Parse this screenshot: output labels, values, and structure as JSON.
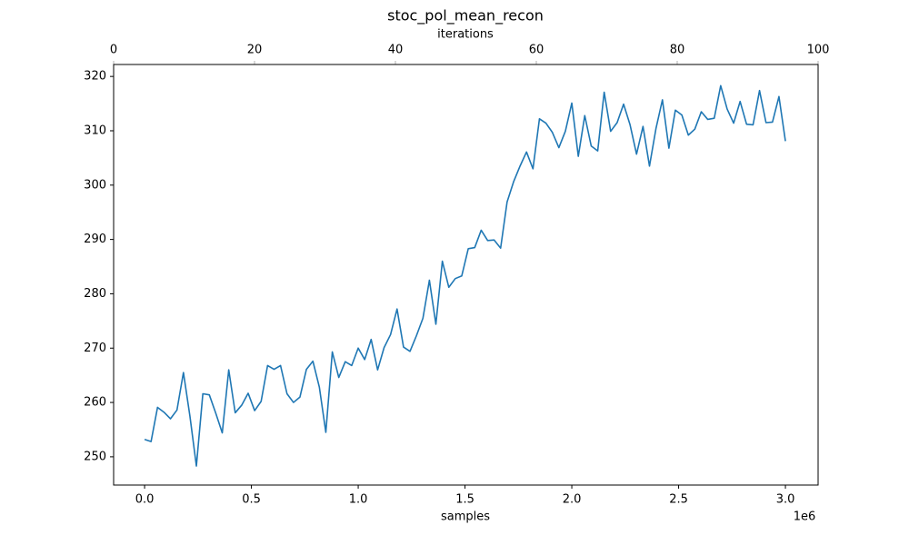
{
  "chart_data": {
    "type": "line",
    "title": "stoc_pol_mean_recon",
    "xlabel": "samples",
    "x_offset_label": "1e6",
    "x2label": "iterations",
    "x2lim": [
      0,
      100
    ],
    "x2ticks": [
      0,
      20,
      40,
      60,
      80,
      100
    ],
    "x2color": "#b0b0b0",
    "xlim": [
      -0.145,
      3.153
    ],
    "xticks": [
      {
        "value": 0,
        "label": "0.0"
      },
      {
        "value": 0.5,
        "label": "0.5"
      },
      {
        "value": 1,
        "label": "1.0"
      },
      {
        "value": 1.5,
        "label": "1.5"
      },
      {
        "value": 2,
        "label": "2.0"
      },
      {
        "value": 2.5,
        "label": "2.5"
      },
      {
        "value": 3,
        "label": "3.0"
      }
    ],
    "ylim": [
      244.8,
      322.2
    ],
    "yticks": [
      250,
      260,
      270,
      280,
      290,
      300,
      310,
      320
    ],
    "color": "#1f77b4",
    "x": [
      0,
      0.0303,
      0.0606,
      0.0909,
      0.1212,
      0.1515,
      0.1818,
      0.2121,
      0.2424,
      0.2727,
      0.303,
      0.3333,
      0.3636,
      0.3939,
      0.4242,
      0.4545,
      0.4848,
      0.5152,
      0.5455,
      0.5758,
      0.6061,
      0.6364,
      0.6667,
      0.697,
      0.7273,
      0.7576,
      0.7879,
      0.8182,
      0.8485,
      0.8788,
      0.9091,
      0.9394,
      0.9697,
      1.0,
      1.0303,
      1.0606,
      1.0909,
      1.1212,
      1.1515,
      1.1818,
      1.2121,
      1.2424,
      1.2727,
      1.303,
      1.3333,
      1.3636,
      1.3939,
      1.4242,
      1.4545,
      1.4848,
      1.5152,
      1.5455,
      1.5758,
      1.6061,
      1.6364,
      1.6667,
      1.697,
      1.7273,
      1.7576,
      1.7879,
      1.8182,
      1.8485,
      1.8788,
      1.9091,
      1.9394,
      1.9697,
      2.0,
      2.0303,
      2.0606,
      2.0909,
      2.1212,
      2.1515,
      2.1818,
      2.2121,
      2.2424,
      2.2727,
      2.303,
      2.3333,
      2.3636,
      2.3939,
      2.4242,
      2.4545,
      2.4848,
      2.5152,
      2.5455,
      2.5758,
      2.6061,
      2.6364,
      2.6667,
      2.697,
      2.7273,
      2.7576,
      2.7879,
      2.8182,
      2.8485,
      2.8788,
      2.9091,
      2.9394,
      2.9697,
      3.0
    ],
    "values": [
      253.2,
      252.8,
      259.1,
      258.2,
      257.0,
      258.6,
      265.5,
      257.5,
      248.3,
      261.6,
      261.4,
      258.0,
      254.4,
      266.0,
      258.1,
      259.5,
      261.7,
      258.5,
      260.2,
      266.8,
      266.1,
      266.8,
      261.6,
      260.0,
      261.0,
      266.1,
      267.6,
      262.8,
      254.5,
      269.3,
      264.6,
      267.5,
      266.8,
      270.0,
      267.9,
      271.6,
      266.0,
      270.1,
      272.5,
      277.2,
      270.2,
      269.4,
      272.3,
      275.5,
      282.5,
      274.4,
      286.0,
      281.2,
      282.8,
      283.3,
      288.3,
      288.5,
      291.7,
      289.8,
      289.9,
      288.4,
      296.9,
      300.6,
      303.5,
      306.1,
      303.0,
      312.2,
      311.4,
      309.7,
      306.9,
      309.9,
      315.1,
      305.3,
      312.8,
      307.2,
      306.3,
      317.1,
      309.9,
      311.5,
      314.9,
      311.1,
      305.7,
      310.8,
      303.5,
      310.4,
      315.7,
      306.8,
      313.8,
      312.9,
      309.2,
      310.3,
      313.5,
      312.1,
      312.3,
      318.3,
      314.0,
      311.4,
      315.4,
      311.2,
      311.1,
      317.4,
      311.5,
      311.6,
      316.3,
      308.1
    ]
  }
}
